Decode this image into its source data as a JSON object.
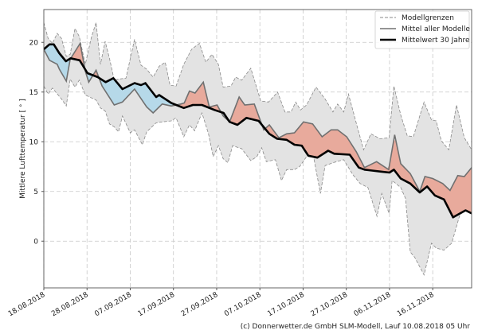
{
  "chart_data": {
    "type": "area",
    "ylabel": "Mittlere Lufttemperatur [ ° ]",
    "xlabel": "",
    "ylim": [
      -4.7,
      23.3
    ],
    "xlim_days": [
      0,
      99
    ],
    "grid": true,
    "legend_position": "top-right",
    "yticks": [
      0,
      5,
      10,
      15,
      20
    ],
    "xticks": [
      {
        "day": 0,
        "label": "18.08.2018"
      },
      {
        "day": 10,
        "label": "28.08.2018"
      },
      {
        "day": 20,
        "label": "07.09.2018"
      },
      {
        "day": 30,
        "label": "17.09.2018"
      },
      {
        "day": 40,
        "label": "27.09.2018"
      },
      {
        "day": 50,
        "label": "07.10.2018"
      },
      {
        "day": 60,
        "label": "17.10.2018"
      },
      {
        "day": 70,
        "label": "27.10.2018"
      },
      {
        "day": 80,
        "label": "06.11.2018"
      },
      {
        "day": 90,
        "label": "16.11.2018"
      }
    ],
    "legend": [
      "Modellgrenzen",
      "Mittel aller Modelle",
      "Mittelwert 30 Jahre"
    ],
    "colors": {
      "envelope": "#e3e3e3",
      "envelope_line": "#8a8a8a",
      "mean": "#707070",
      "climate": "#000000",
      "warm": "#e8aa9c",
      "cold": "#b6d9e9",
      "grid": "#c8c8c8"
    },
    "series": {
      "upper": [
        [
          0,
          22.0
        ],
        [
          1,
          20.4
        ],
        [
          2,
          19.9
        ],
        [
          3.1,
          20.9
        ],
        [
          4.1,
          20.4
        ],
        [
          5.2,
          18.6
        ],
        [
          6.1,
          18.8
        ],
        [
          7.2,
          21.4
        ],
        [
          8.2,
          20.6
        ],
        [
          9.6,
          17.8
        ],
        [
          11,
          20.5
        ],
        [
          12.1,
          22.0
        ],
        [
          13.1,
          17.8
        ],
        [
          14.2,
          20.1
        ],
        [
          15.2,
          18.4
        ],
        [
          16.3,
          16.2
        ],
        [
          17.3,
          16.3
        ],
        [
          19,
          16.4
        ],
        [
          21,
          20.3
        ],
        [
          22.5,
          17.7
        ],
        [
          23.8,
          17.3
        ],
        [
          25.3,
          16.5
        ],
        [
          26.7,
          17.6
        ],
        [
          28.1,
          18.0
        ],
        [
          29.2,
          15.7
        ],
        [
          30.6,
          15.6
        ],
        [
          32.4,
          17.8
        ],
        [
          34.2,
          19.3
        ],
        [
          36,
          19.9
        ],
        [
          37.5,
          18.0
        ],
        [
          38.9,
          18.8
        ],
        [
          40.4,
          17.8
        ],
        [
          41.5,
          15.5
        ],
        [
          43.3,
          15.6
        ],
        [
          44.4,
          16.5
        ],
        [
          45.8,
          16.2
        ],
        [
          47.9,
          17.4
        ],
        [
          50.2,
          14.1
        ],
        [
          52,
          14.0
        ],
        [
          54.1,
          15.0
        ],
        [
          55.8,
          13.0
        ],
        [
          57.2,
          13.0
        ],
        [
          58.3,
          14.0
        ],
        [
          59.4,
          13.2
        ],
        [
          60.8,
          13.7
        ],
        [
          63,
          15.5
        ],
        [
          65.1,
          14.3
        ],
        [
          66.9,
          13.0
        ],
        [
          68,
          13.8
        ],
        [
          69.4,
          13.0
        ],
        [
          70.5,
          14.8
        ],
        [
          72.6,
          11.4
        ],
        [
          74,
          9.2
        ],
        [
          75.7,
          10.8
        ],
        [
          77.8,
          10.3
        ],
        [
          79.9,
          10.4
        ],
        [
          81,
          15.6
        ],
        [
          82.6,
          12.7
        ],
        [
          84.1,
          10.6
        ],
        [
          85.5,
          10.5
        ],
        [
          88,
          14.0
        ],
        [
          89.7,
          12.2
        ],
        [
          90.8,
          12.1
        ],
        [
          92,
          10.1
        ],
        [
          93.7,
          9.2
        ],
        [
          95.5,
          13.7
        ],
        [
          97.3,
          10.4
        ],
        [
          99,
          9.2
        ]
      ],
      "lower": [
        [
          0,
          15.6
        ],
        [
          1,
          14.8
        ],
        [
          2,
          15.4
        ],
        [
          4.1,
          14.3
        ],
        [
          5.2,
          13.6
        ],
        [
          6.1,
          16.3
        ],
        [
          7.2,
          15.5
        ],
        [
          8.2,
          16.2
        ],
        [
          9.6,
          14.7
        ],
        [
          12.1,
          14.2
        ],
        [
          13.1,
          13.4
        ],
        [
          14.2,
          13.1
        ],
        [
          15.2,
          11.8
        ],
        [
          16.3,
          11.5
        ],
        [
          17.3,
          11.0
        ],
        [
          18.2,
          12.6
        ],
        [
          20,
          10.9
        ],
        [
          21,
          11.2
        ],
        [
          22.8,
          9.7
        ],
        [
          23.8,
          11.0
        ],
        [
          26,
          11.9
        ],
        [
          27.4,
          12.0
        ],
        [
          29.5,
          12.1
        ],
        [
          30.6,
          12.4
        ],
        [
          32.4,
          10.5
        ],
        [
          33.7,
          11.7
        ],
        [
          34.9,
          11.1
        ],
        [
          36.6,
          12.9
        ],
        [
          38.1,
          10.8
        ],
        [
          39.2,
          8.5
        ],
        [
          40.4,
          9.6
        ],
        [
          41.5,
          8.3
        ],
        [
          42.6,
          7.9
        ],
        [
          43.7,
          9.6
        ],
        [
          45.8,
          9.3
        ],
        [
          47.9,
          8.1
        ],
        [
          49.3,
          8.5
        ],
        [
          50.4,
          9.4
        ],
        [
          51.5,
          8.0
        ],
        [
          53.6,
          8.2
        ],
        [
          55,
          6.1
        ],
        [
          56.2,
          7.2
        ],
        [
          58,
          7.2
        ],
        [
          59.2,
          7.5
        ],
        [
          60.8,
          8.5
        ],
        [
          62.2,
          9.0
        ],
        [
          64,
          4.8
        ],
        [
          65.1,
          7.6
        ],
        [
          67,
          7.9
        ],
        [
          69.4,
          8.2
        ],
        [
          71.5,
          6.7
        ],
        [
          73.2,
          5.8
        ],
        [
          75,
          5.4
        ],
        [
          77.1,
          2.5
        ],
        [
          78.2,
          4.8
        ],
        [
          79.9,
          2.8
        ],
        [
          80.6,
          6.1
        ],
        [
          82.6,
          5.4
        ],
        [
          83.7,
          4.3
        ],
        [
          84.8,
          -1.1
        ],
        [
          85.8,
          -1.6
        ],
        [
          88,
          -3.4
        ],
        [
          89.7,
          -0.2
        ],
        [
          90.8,
          -0.7
        ],
        [
          92.6,
          -0.9
        ],
        [
          94.4,
          -0.2
        ],
        [
          96.1,
          2.4
        ],
        [
          97.6,
          4.0
        ],
        [
          99,
          5.1
        ]
      ],
      "mean": [
        [
          0,
          19.3
        ],
        [
          1.3,
          18.2
        ],
        [
          3.1,
          17.8
        ],
        [
          3.6,
          17.3
        ],
        [
          5.2,
          16.1
        ],
        [
          6.1,
          18.3
        ],
        [
          8.4,
          19.9
        ],
        [
          9.6,
          17.1
        ],
        [
          10.4,
          16.0
        ],
        [
          12.1,
          17.2
        ],
        [
          13.5,
          15.6
        ],
        [
          16.3,
          13.7
        ],
        [
          18.2,
          14.0
        ],
        [
          21,
          15.3
        ],
        [
          23.8,
          13.5
        ],
        [
          25.3,
          12.9
        ],
        [
          27.4,
          13.8
        ],
        [
          29.5,
          13.6
        ],
        [
          31.7,
          13.8
        ],
        [
          32.5,
          13.9
        ],
        [
          33.7,
          15.1
        ],
        [
          35,
          14.9
        ],
        [
          36.9,
          16.0
        ],
        [
          38.3,
          13.5
        ],
        [
          40.1,
          13.7
        ],
        [
          41.5,
          12.6
        ],
        [
          43,
          12.0
        ],
        [
          45.2,
          14.5
        ],
        [
          46.5,
          13.7
        ],
        [
          48.7,
          13.8
        ],
        [
          50.9,
          11.2
        ],
        [
          52.2,
          11.7
        ],
        [
          54.4,
          10.4
        ],
        [
          56.2,
          10.8
        ],
        [
          58,
          10.9
        ],
        [
          60.1,
          12.0
        ],
        [
          62.2,
          11.8
        ],
        [
          64.4,
          10.5
        ],
        [
          66.5,
          11.2
        ],
        [
          68,
          11.2
        ],
        [
          70.1,
          10.5
        ],
        [
          72.3,
          9.0
        ],
        [
          74.2,
          7.4
        ],
        [
          77,
          8.0
        ],
        [
          79.8,
          7.2
        ],
        [
          81.2,
          10.7
        ],
        [
          82.6,
          7.8
        ],
        [
          84.8,
          6.8
        ],
        [
          87,
          5.0
        ],
        [
          88.2,
          6.5
        ],
        [
          90,
          6.3
        ],
        [
          92.3,
          5.8
        ],
        [
          94,
          5.1
        ],
        [
          95.8,
          6.6
        ],
        [
          97.3,
          6.5
        ],
        [
          99,
          7.4
        ]
      ],
      "climate": [
        [
          0,
          19.3
        ],
        [
          1.3,
          19.8
        ],
        [
          2.3,
          19.8
        ],
        [
          3.6,
          18.9
        ],
        [
          5.1,
          18.1
        ],
        [
          6.2,
          18.4
        ],
        [
          8.3,
          18.2
        ],
        [
          10.1,
          16.9
        ],
        [
          12.5,
          16.5
        ],
        [
          14.3,
          16.0
        ],
        [
          16.1,
          16.4
        ],
        [
          18.2,
          15.3
        ],
        [
          21,
          15.9
        ],
        [
          22.5,
          15.7
        ],
        [
          23.5,
          15.9
        ],
        [
          26,
          14.5
        ],
        [
          26.7,
          14.7
        ],
        [
          29.5,
          13.9
        ],
        [
          32.4,
          13.4
        ],
        [
          34.5,
          13.7
        ],
        [
          36.6,
          13.7
        ],
        [
          39.5,
          13.2
        ],
        [
          41.6,
          12.9
        ],
        [
          43,
          12.0
        ],
        [
          44.8,
          11.7
        ],
        [
          46.9,
          12.4
        ],
        [
          49.7,
          12.1
        ],
        [
          52.2,
          10.8
        ],
        [
          54,
          10.3
        ],
        [
          56.2,
          10.2
        ],
        [
          58,
          9.7
        ],
        [
          59.7,
          9.6
        ],
        [
          61.2,
          8.6
        ],
        [
          63.3,
          8.4
        ],
        [
          65.8,
          9.1
        ],
        [
          67.2,
          8.8
        ],
        [
          70.8,
          8.7
        ],
        [
          72.9,
          7.4
        ],
        [
          74.2,
          7.2
        ],
        [
          76,
          7.1
        ],
        [
          78,
          7.0
        ],
        [
          80,
          6.9
        ],
        [
          81,
          7.2
        ],
        [
          82.6,
          6.3
        ],
        [
          84.8,
          5.8
        ],
        [
          87,
          4.9
        ],
        [
          88.7,
          5.5
        ],
        [
          90.5,
          4.6
        ],
        [
          92.6,
          4.2
        ],
        [
          94.7,
          2.4
        ],
        [
          97.6,
          3.1
        ],
        [
          99,
          2.8
        ]
      ]
    }
  },
  "footer": "(c) Donnerwetter.de GmbH SLM-Modell, Lauf 10.08.2018 05 Uhr"
}
